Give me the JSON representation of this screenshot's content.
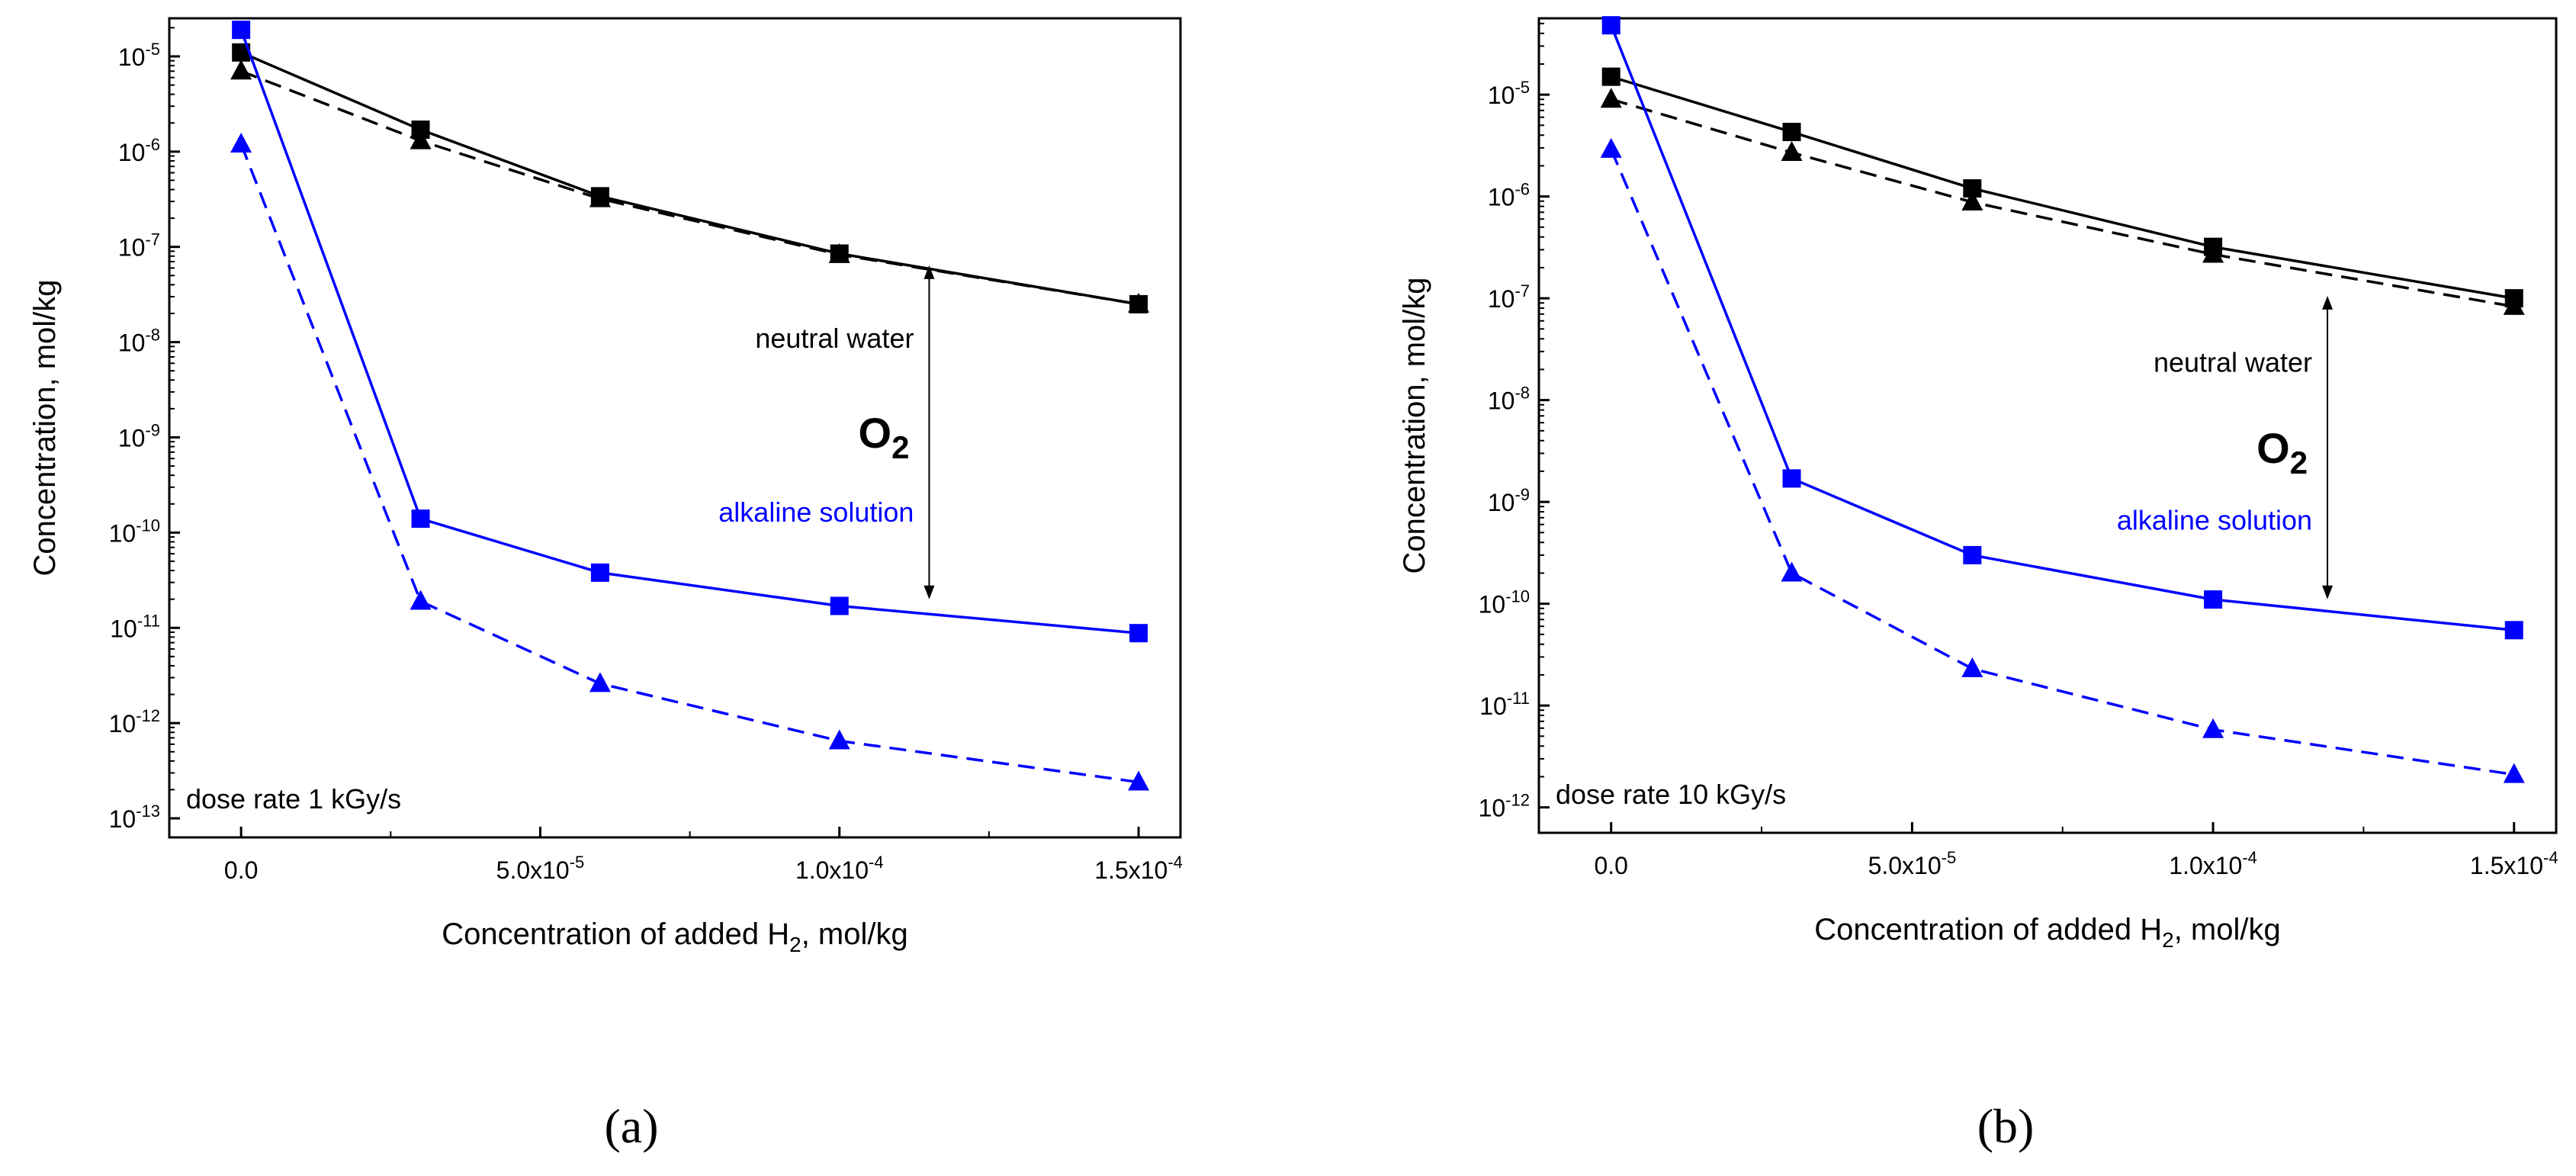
{
  "colors": {
    "neutral": "#000000",
    "alkaline": "#0000ff",
    "frame": "#000000"
  },
  "chart_data": [
    {
      "panel": "a",
      "caption": "(a)",
      "type": "line",
      "yscale": "log",
      "xlabel": "Concentration of added H",
      "xlabel_sub": "2",
      "xlabel_suffix": ", mol/kg",
      "ylabel": "Concentration, mol/kg",
      "xlim": [
        -1.2e-05,
        0.000157
      ],
      "ylim_exp": [
        -13.2,
        -4.6
      ],
      "x_ticks": [
        {
          "value": 0,
          "mant": "0.0",
          "exp": ""
        },
        {
          "value": 5e-05,
          "mant": "5.0x10",
          "exp": "-5"
        },
        {
          "value": 0.0001,
          "mant": "1.0x10",
          "exp": "-4"
        },
        {
          "value": 0.00015,
          "mant": "1.5x10",
          "exp": "-4"
        }
      ],
      "y_ticks": [
        {
          "exp": -5,
          "label": "-5"
        },
        {
          "exp": -6,
          "label": "-6"
        },
        {
          "exp": -7,
          "label": "-7"
        },
        {
          "exp": -8,
          "label": "-8"
        },
        {
          "exp": -9,
          "label": "-9"
        },
        {
          "exp": -10,
          "label": "-10"
        },
        {
          "exp": -11,
          "label": "-11"
        },
        {
          "exp": -12,
          "label": "-12"
        },
        {
          "exp": -13,
          "label": "-13"
        }
      ],
      "series": [
        {
          "name": "neutral water squares",
          "color": "neutral",
          "marker": "square",
          "dash": false,
          "x": [
            0,
            3e-05,
            6e-05,
            0.0001,
            0.00015
          ],
          "y": [
            1.1e-05,
            1.7e-06,
            3.4e-07,
            8.5e-08,
            2.5e-08
          ]
        },
        {
          "name": "neutral water triangles",
          "color": "neutral",
          "marker": "triangle",
          "dash": true,
          "x": [
            0,
            3e-05,
            6e-05,
            0.0001,
            0.00015
          ],
          "y": [
            7e-06,
            1.3e-06,
            3.2e-07,
            8.3e-08,
            2.5e-08
          ]
        },
        {
          "name": "alkaline solution squares",
          "color": "alkaline",
          "marker": "square",
          "dash": false,
          "x": [
            0,
            3e-05,
            6e-05,
            0.0001,
            0.00015
          ],
          "y": [
            1.9e-05,
            1.4e-10,
            3.8e-11,
            1.7e-11,
            8.8e-12
          ]
        },
        {
          "name": "alkaline solution triangles",
          "color": "alkaline",
          "marker": "triangle",
          "dash": true,
          "x": [
            0,
            3e-05,
            6e-05,
            0.0001,
            0.00015
          ],
          "y": [
            1.2e-06,
            1.9e-11,
            2.6e-12,
            6.5e-13,
            2.4e-13
          ]
        }
      ],
      "annotations": {
        "neutral_label": "neutral water",
        "alkaline_label": "alkaline solution",
        "o2_label": "O",
        "o2_sub": "2",
        "dose_label": "dose rate 1 kGy/s",
        "arrow_x": 0.000115,
        "arrow_top": 8e-08,
        "arrow_bottom": 1.6e-11
      }
    },
    {
      "panel": "b",
      "caption": "(b)",
      "type": "line",
      "yscale": "log",
      "xlabel": "Concentration of added H",
      "xlabel_sub": "2",
      "xlabel_suffix": ", mol/kg",
      "ylabel": "Concentration, mol/kg",
      "xlim": [
        -1.2e-05,
        0.000157
      ],
      "ylim_exp": [
        -12.25,
        -4.25
      ],
      "x_ticks": [
        {
          "value": 0,
          "mant": "0.0",
          "exp": ""
        },
        {
          "value": 5e-05,
          "mant": "5.0x10",
          "exp": "-5"
        },
        {
          "value": 0.0001,
          "mant": "1.0x10",
          "exp": "-4"
        },
        {
          "value": 0.00015,
          "mant": "1.5x10",
          "exp": "-4"
        }
      ],
      "y_ticks": [
        {
          "exp": -5,
          "label": "-5"
        },
        {
          "exp": -6,
          "label": "-6"
        },
        {
          "exp": -7,
          "label": "-7"
        },
        {
          "exp": -8,
          "label": "-8"
        },
        {
          "exp": -9,
          "label": "-9"
        },
        {
          "exp": -10,
          "label": "-10"
        },
        {
          "exp": -11,
          "label": "-11"
        },
        {
          "exp": -12,
          "label": "-12"
        }
      ],
      "series": [
        {
          "name": "neutral water squares",
          "color": "neutral",
          "marker": "square",
          "dash": false,
          "x": [
            0,
            3e-05,
            6e-05,
            0.0001,
            0.00015
          ],
          "y": [
            1.5e-05,
            4.3e-06,
            1.2e-06,
            3.2e-07,
            1e-07
          ]
        },
        {
          "name": "neutral water triangles",
          "color": "neutral",
          "marker": "triangle",
          "dash": true,
          "x": [
            0,
            3e-05,
            6e-05,
            0.0001,
            0.00015
          ],
          "y": [
            9e-06,
            2.7e-06,
            8.8e-07,
            2.7e-07,
            8.3e-08
          ]
        },
        {
          "name": "alkaline solution squares",
          "color": "alkaline",
          "marker": "square",
          "dash": false,
          "x": [
            0,
            3e-05,
            6e-05,
            0.0001,
            0.00015
          ],
          "y": [
            4.8e-05,
            1.7e-09,
            3e-10,
            1.1e-10,
            5.5e-11
          ]
        },
        {
          "name": "alkaline solution triangles",
          "color": "alkaline",
          "marker": "triangle",
          "dash": true,
          "x": [
            0,
            3e-05,
            6e-05,
            0.0001,
            0.00015
          ],
          "y": [
            2.9e-06,
            2e-10,
            2.3e-11,
            5.8e-12,
            2.1e-12
          ]
        }
      ],
      "annotations": {
        "neutral_label": "neutral water",
        "alkaline_label": "alkaline solution",
        "o2_label": "O",
        "o2_sub": "2",
        "dose_label": "dose rate 10 kGy/s",
        "arrow_x": 0.000119,
        "arrow_top": 1.3e-07,
        "arrow_bottom": 9e-11
      }
    }
  ]
}
